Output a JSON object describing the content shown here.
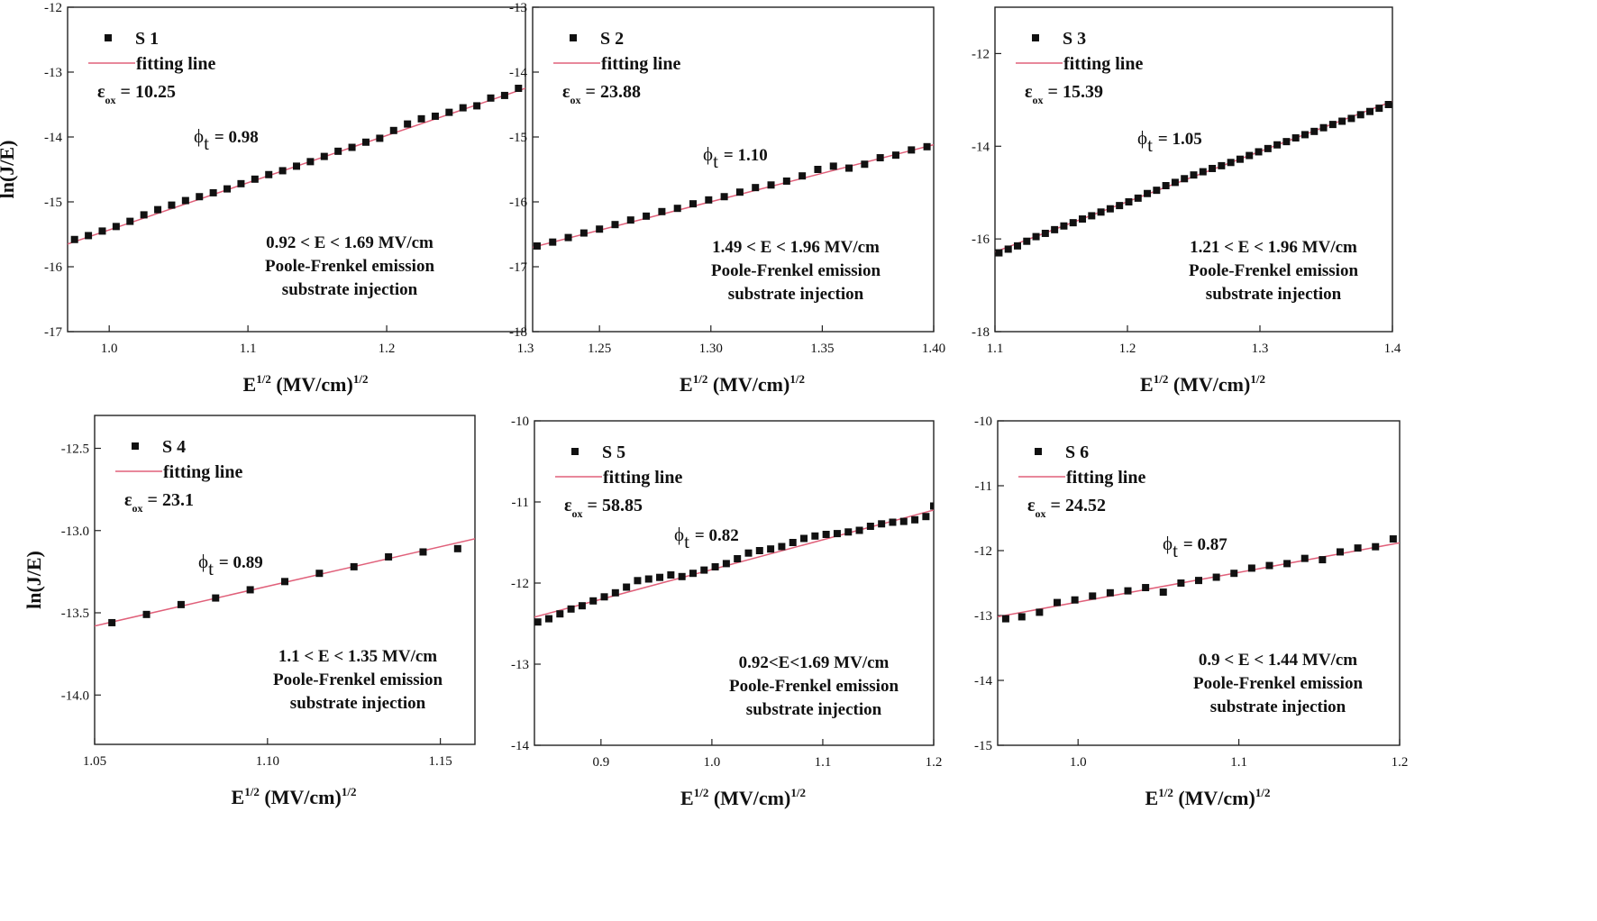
{
  "chart_data": [
    {
      "type": "scatter",
      "panel": "S 1",
      "legend": {
        "marker_label": "S 1",
        "line_label": "fitting line"
      },
      "eps": {
        "symbol": "ε",
        "sub": "ox",
        "value": "= 10.25"
      },
      "phi": {
        "symbol": "ϕ",
        "sub": "t",
        "value": "= 0.98"
      },
      "annotations": [
        "0.92 < E < 1.69 MV/cm",
        "Poole-Frenkel emission",
        "substrate injection"
      ],
      "xlim": [
        0.97,
        1.3
      ],
      "ylim": [
        -17,
        -12
      ],
      "xticks": [
        1.0,
        1.1,
        1.2,
        1.3
      ],
      "xtick_labels": [
        "1.0",
        "1.1",
        "1.2",
        "1.3"
      ],
      "yticks": [
        -17,
        -16,
        -15,
        -14,
        -13,
        -12
      ],
      "ytick_labels": [
        "-17",
        "-16",
        "-15",
        "-14",
        "-13",
        "-12"
      ],
      "xlabel_base": "E",
      "xlabel_sup": "1/2",
      "xlabel_mid": " (MV/cm)",
      "xlabel_sup2": "1/2",
      "ylabel": "ln(J/E)",
      "fit": {
        "x": [
          0.97,
          1.3
        ],
        "y": [
          -15.65,
          -13.25
        ]
      },
      "x": [
        0.975,
        0.985,
        0.995,
        1.005,
        1.015,
        1.025,
        1.035,
        1.045,
        1.055,
        1.065,
        1.075,
        1.085,
        1.095,
        1.105,
        1.115,
        1.125,
        1.135,
        1.145,
        1.155,
        1.165,
        1.175,
        1.185,
        1.195,
        1.205,
        1.215,
        1.225,
        1.235,
        1.245,
        1.255,
        1.265,
        1.275,
        1.285,
        1.295
      ],
      "y": [
        -15.58,
        -15.52,
        -15.45,
        -15.38,
        -15.3,
        -15.2,
        -15.12,
        -15.05,
        -14.98,
        -14.92,
        -14.86,
        -14.8,
        -14.72,
        -14.65,
        -14.58,
        -14.52,
        -14.45,
        -14.38,
        -14.3,
        -14.22,
        -14.16,
        -14.08,
        -14.02,
        -13.9,
        -13.8,
        -13.72,
        -13.68,
        -13.62,
        -13.55,
        -13.52,
        -13.4,
        -13.36,
        -13.25
      ]
    },
    {
      "type": "scatter",
      "panel": "S 2",
      "legend": {
        "marker_label": "S 2",
        "line_label": "fitting line"
      },
      "eps": {
        "symbol": "ε",
        "sub": "ox",
        "value": "= 23.88"
      },
      "phi": {
        "symbol": "ϕ",
        "sub": "t",
        "value": "= 1.10"
      },
      "annotations": [
        "1.49 < E < 1.96 MV/cm",
        "Poole-Frenkel emission",
        "substrate injection"
      ],
      "xlim": [
        1.22,
        1.4
      ],
      "ylim": [
        -18,
        -13
      ],
      "xticks": [
        1.25,
        1.3,
        1.35,
        1.4
      ],
      "xtick_labels": [
        "1.25",
        "1.30",
        "1.35",
        "1.40"
      ],
      "yticks": [
        -18,
        -17,
        -16,
        -15,
        -14,
        -13
      ],
      "ytick_labels": [
        "-18",
        "-17",
        "-16",
        "-15",
        "-14",
        "-13"
      ],
      "xlabel_base": "E",
      "xlabel_sup": "1/2",
      "xlabel_mid": " (MV/cm)",
      "xlabel_sup2": "1/2",
      "ylabel": "",
      "fit": {
        "x": [
          1.22,
          1.4
        ],
        "y": [
          -16.7,
          -15.12
        ]
      },
      "x": [
        1.222,
        1.229,
        1.236,
        1.243,
        1.25,
        1.257,
        1.264,
        1.271,
        1.278,
        1.285,
        1.292,
        1.299,
        1.306,
        1.313,
        1.32,
        1.327,
        1.334,
        1.341,
        1.348,
        1.355,
        1.362,
        1.369,
        1.376,
        1.383,
        1.39,
        1.397
      ],
      "y": [
        -16.68,
        -16.62,
        -16.55,
        -16.48,
        -16.42,
        -16.35,
        -16.28,
        -16.22,
        -16.15,
        -16.1,
        -16.03,
        -15.97,
        -15.92,
        -15.85,
        -15.78,
        -15.74,
        -15.68,
        -15.6,
        -15.5,
        -15.45,
        -15.48,
        -15.42,
        -15.32,
        -15.28,
        -15.2,
        -15.15
      ]
    },
    {
      "type": "scatter",
      "panel": "S 3",
      "legend": {
        "marker_label": "S 3",
        "line_label": "fitting line"
      },
      "eps": {
        "symbol": "ε",
        "sub": "ox",
        "value": "= 15.39"
      },
      "phi": {
        "symbol": "ϕ",
        "sub": "t",
        "value": "= 1.05"
      },
      "annotations": [
        "1.21 < E < 1.96 MV/cm",
        "Poole-Frenkel emission",
        "substrate injection"
      ],
      "xlim": [
        1.1,
        1.4
      ],
      "ylim": [
        -18,
        -11
      ],
      "xticks": [
        1.1,
        1.2,
        1.3,
        1.4
      ],
      "xtick_labels": [
        "1.1",
        "1.2",
        "1.3",
        "1.4"
      ],
      "yticks": [
        -18,
        -16,
        -14,
        -12
      ],
      "ytick_labels": [
        "-18",
        "-16",
        "-14",
        "-12"
      ],
      "xlabel_base": "E",
      "xlabel_sup": "1/2",
      "xlabel_mid": " (MV/cm)",
      "xlabel_sup2": "1/2",
      "ylabel": "",
      "fit": {
        "x": [
          1.1,
          1.4
        ],
        "y": [
          -16.28,
          -13.03
        ]
      },
      "x": [
        1.103,
        1.11,
        1.117,
        1.124,
        1.131,
        1.138,
        1.145,
        1.152,
        1.159,
        1.166,
        1.173,
        1.18,
        1.187,
        1.194,
        1.201,
        1.208,
        1.215,
        1.222,
        1.229,
        1.236,
        1.243,
        1.25,
        1.257,
        1.264,
        1.271,
        1.278,
        1.285,
        1.292,
        1.299,
        1.306,
        1.313,
        1.32,
        1.327,
        1.334,
        1.341,
        1.348,
        1.355,
        1.362,
        1.369,
        1.376,
        1.383,
        1.39,
        1.397
      ],
      "y": [
        -16.3,
        -16.22,
        -16.15,
        -16.05,
        -15.95,
        -15.88,
        -15.8,
        -15.72,
        -15.65,
        -15.57,
        -15.5,
        -15.42,
        -15.35,
        -15.28,
        -15.2,
        -15.12,
        -15.02,
        -14.95,
        -14.85,
        -14.78,
        -14.7,
        -14.62,
        -14.55,
        -14.48,
        -14.42,
        -14.35,
        -14.28,
        -14.2,
        -14.12,
        -14.05,
        -13.97,
        -13.9,
        -13.82,
        -13.75,
        -13.68,
        -13.6,
        -13.53,
        -13.46,
        -13.4,
        -13.32,
        -13.25,
        -13.18,
        -13.1
      ]
    },
    {
      "type": "scatter",
      "panel": "S 4",
      "legend": {
        "marker_label": "S 4",
        "line_label": "fitting line"
      },
      "eps": {
        "symbol": "ε",
        "sub": "ox",
        "value": "= 23.1"
      },
      "phi": {
        "symbol": "ϕ",
        "sub": "t",
        "value": "= 0.89"
      },
      "annotations": [
        "1.1 < E < 1.35 MV/cm",
        "Poole-Frenkel emission",
        "substrate injection"
      ],
      "xlim": [
        1.05,
        1.16
      ],
      "ylim": [
        -14.3,
        -12.3
      ],
      "xticks": [
        1.05,
        1.1,
        1.15
      ],
      "xtick_labels": [
        "1.05",
        "1.10",
        "1.15"
      ],
      "yticks": [
        -14.0,
        -13.5,
        -13.0,
        -12.5
      ],
      "ytick_labels": [
        "-14.0",
        "-13.5",
        "-13.0",
        "-12.5"
      ],
      "xlabel_base": "E",
      "xlabel_sup": "1/2",
      "xlabel_mid": " (MV/cm)",
      "xlabel_sup2": "1/2",
      "ylabel": "ln(J/E)",
      "fit": {
        "x": [
          1.05,
          1.16
        ],
        "y": [
          -13.58,
          -13.05
        ]
      },
      "x": [
        1.055,
        1.065,
        1.075,
        1.085,
        1.095,
        1.105,
        1.115,
        1.125,
        1.135,
        1.145,
        1.155
      ],
      "y": [
        -13.56,
        -13.51,
        -13.45,
        -13.41,
        -13.36,
        -13.31,
        -13.26,
        -13.22,
        -13.16,
        -13.13,
        -13.11
      ]
    },
    {
      "type": "scatter",
      "panel": "S 5",
      "legend": {
        "marker_label": "S 5",
        "line_label": "fitting line"
      },
      "eps": {
        "symbol": "ε",
        "sub": "ox",
        "value": "= 58.85"
      },
      "phi": {
        "symbol": "ϕ",
        "sub": "t",
        "value": "= 0.82"
      },
      "annotations": [
        "0.92<E<1.69 MV/cm",
        "Poole-Frenkel emission",
        "substrate injection"
      ],
      "xlim": [
        0.84,
        1.2
      ],
      "ylim": [
        -14,
        -10
      ],
      "xticks": [
        0.9,
        1.0,
        1.1,
        1.2
      ],
      "xtick_labels": [
        "0.9",
        "1.0",
        "1.1",
        "1.2"
      ],
      "yticks": [
        -14,
        -13,
        -12,
        -11,
        -10
      ],
      "ytick_labels": [
        "-14",
        "-13",
        "-12",
        "-11",
        "-10"
      ],
      "xlabel_base": "E",
      "xlabel_sup": "1/2",
      "xlabel_mid": " (MV/cm)",
      "xlabel_sup2": "1/2",
      "ylabel": "",
      "fit": {
        "x": [
          0.84,
          1.2
        ],
        "y": [
          -12.42,
          -11.1
        ]
      },
      "x": [
        0.843,
        0.853,
        0.863,
        0.873,
        0.883,
        0.893,
        0.903,
        0.913,
        0.923,
        0.933,
        0.943,
        0.953,
        0.963,
        0.973,
        0.983,
        0.993,
        1.003,
        1.013,
        1.023,
        1.033,
        1.043,
        1.053,
        1.063,
        1.073,
        1.083,
        1.093,
        1.103,
        1.113,
        1.123,
        1.133,
        1.143,
        1.153,
        1.163,
        1.173,
        1.183,
        1.193,
        1.2
      ],
      "y": [
        -12.48,
        -12.44,
        -12.38,
        -12.32,
        -12.28,
        -12.22,
        -12.17,
        -12.12,
        -12.05,
        -11.97,
        -11.95,
        -11.93,
        -11.9,
        -11.92,
        -11.88,
        -11.84,
        -11.8,
        -11.76,
        -11.7,
        -11.63,
        -11.6,
        -11.58,
        -11.55,
        -11.5,
        -11.45,
        -11.42,
        -11.4,
        -11.39,
        -11.37,
        -11.35,
        -11.3,
        -11.27,
        -11.25,
        -11.24,
        -11.22,
        -11.18,
        -11.05
      ]
    },
    {
      "type": "scatter",
      "panel": "S 6",
      "legend": {
        "marker_label": "S 6",
        "line_label": "fitting line"
      },
      "eps": {
        "symbol": "ε",
        "sub": "ox",
        "value": "= 24.52"
      },
      "phi": {
        "symbol": "ϕ",
        "sub": "t",
        "value": "= 0.87"
      },
      "annotations": [
        "0.9 < E < 1.44 MV/cm",
        "Poole-Frenkel emission",
        "substrate injection"
      ],
      "xlim": [
        0.95,
        1.2
      ],
      "ylim": [
        -15,
        -10
      ],
      "xticks": [
        1.0,
        1.1,
        1.2
      ],
      "xtick_labels": [
        "1.0",
        "1.1",
        "1.2"
      ],
      "yticks": [
        -15,
        -14,
        -13,
        -12,
        -11,
        -10
      ],
      "ytick_labels": [
        "-15",
        "-14",
        "-13",
        "-12",
        "-11",
        "-10"
      ],
      "xlabel_base": "E",
      "xlabel_sup": "1/2",
      "xlabel_mid": " (MV/cm)",
      "xlabel_sup2": "1/2",
      "ylabel": "",
      "fit": {
        "x": [
          0.95,
          1.2
        ],
        "y": [
          -13.02,
          -11.88
        ]
      },
      "x": [
        0.955,
        0.965,
        0.976,
        0.987,
        0.998,
        1.009,
        1.02,
        1.031,
        1.042,
        1.053,
        1.064,
        1.075,
        1.086,
        1.097,
        1.108,
        1.119,
        1.13,
        1.141,
        1.152,
        1.163,
        1.174,
        1.185,
        1.196
      ],
      "y": [
        -13.05,
        -13.02,
        -12.95,
        -12.8,
        -12.76,
        -12.7,
        -12.65,
        -12.62,
        -12.57,
        -12.64,
        -12.5,
        -12.46,
        -12.41,
        -12.35,
        -12.27,
        -12.23,
        -12.2,
        -12.12,
        -12.14,
        -12.02,
        -11.96,
        -11.94,
        -11.82
      ]
    }
  ]
}
